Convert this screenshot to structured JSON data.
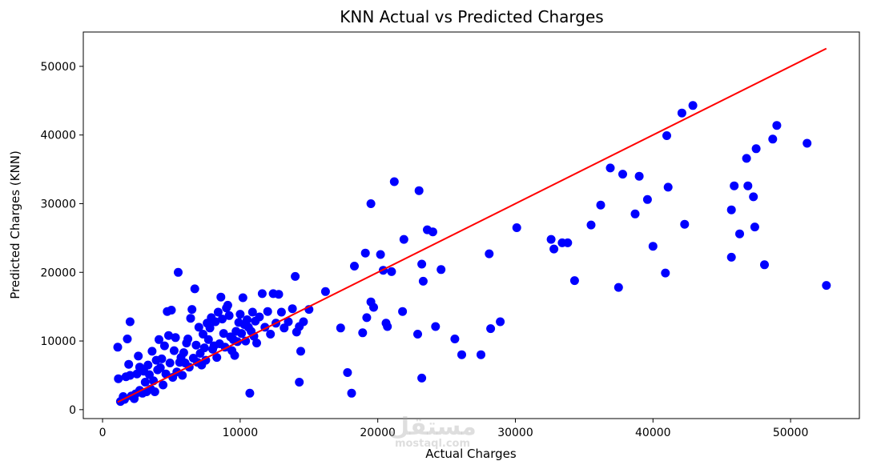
{
  "chart_data": {
    "type": "scatter",
    "title": "KNN Actual vs Predicted Charges",
    "xlabel": "Actual Charges",
    "ylabel": "Predicted Charges (KNN)",
    "xlim": [
      -1400,
      55000
    ],
    "ylim": [
      -1300,
      55000
    ],
    "xticks": [
      0,
      10000,
      20000,
      30000,
      40000,
      50000
    ],
    "yticks": [
      0,
      10000,
      20000,
      30000,
      40000,
      50000
    ],
    "grid": false,
    "point_color": "#0000ff",
    "line_color": "#ff0000",
    "reference_line": {
      "x": [
        1100,
        52600
      ],
      "y": [
        1100,
        52600
      ]
    },
    "points": [
      [
        1100,
        9100
      ],
      [
        1150,
        4500
      ],
      [
        1300,
        1200
      ],
      [
        1500,
        1900
      ],
      [
        1600,
        1500
      ],
      [
        1700,
        4800
      ],
      [
        1800,
        10300
      ],
      [
        1900,
        6600
      ],
      [
        2000,
        12800
      ],
      [
        2000,
        5000
      ],
      [
        2100,
        2000
      ],
      [
        2300,
        1600
      ],
      [
        2400,
        2300
      ],
      [
        2500,
        5200
      ],
      [
        2600,
        7800
      ],
      [
        2700,
        6200
      ],
      [
        2700,
        2800
      ],
      [
        2900,
        2400
      ],
      [
        3000,
        5600
      ],
      [
        3100,
        4000
      ],
      [
        3200,
        2600
      ],
      [
        3300,
        6500
      ],
      [
        3400,
        5100
      ],
      [
        3500,
        3000
      ],
      [
        3600,
        8500
      ],
      [
        3700,
        4200
      ],
      [
        3800,
        2600
      ],
      [
        3900,
        7200
      ],
      [
        4000,
        5800
      ],
      [
        4100,
        10200
      ],
      [
        4200,
        6100
      ],
      [
        4300,
        7400
      ],
      [
        4400,
        3600
      ],
      [
        4500,
        9300
      ],
      [
        4600,
        5200
      ],
      [
        4700,
        14300
      ],
      [
        4800,
        10800
      ],
      [
        4900,
        6800
      ],
      [
        5000,
        14500
      ],
      [
        5100,
        4700
      ],
      [
        5200,
        8600
      ],
      [
        5300,
        10500
      ],
      [
        5400,
        5500
      ],
      [
        5500,
        20000
      ],
      [
        5600,
        6900
      ],
      [
        5700,
        7600
      ],
      [
        5800,
        5000
      ],
      [
        5900,
        8300
      ],
      [
        6000,
        6800
      ],
      [
        6100,
        9700
      ],
      [
        6200,
        10300
      ],
      [
        6300,
        6200
      ],
      [
        6400,
        13300
      ],
      [
        6500,
        14600
      ],
      [
        6600,
        7500
      ],
      [
        6700,
        17600
      ],
      [
        6800,
        9400
      ],
      [
        6900,
        6900
      ],
      [
        7000,
        12000
      ],
      [
        7100,
        8200
      ],
      [
        7200,
        6500
      ],
      [
        7300,
        11000
      ],
      [
        7400,
        9000
      ],
      [
        7500,
        7200
      ],
      [
        7600,
        12600
      ],
      [
        7700,
        10200
      ],
      [
        7800,
        11900
      ],
      [
        7900,
        13400
      ],
      [
        8000,
        8800
      ],
      [
        8100,
        9300
      ],
      [
        8200,
        12800
      ],
      [
        8300,
        7600
      ],
      [
        8400,
        14200
      ],
      [
        8500,
        9600
      ],
      [
        8600,
        16400
      ],
      [
        8700,
        13200
      ],
      [
        8800,
        11100
      ],
      [
        8900,
        9100
      ],
      [
        9000,
        14800
      ],
      [
        9100,
        15200
      ],
      [
        9200,
        13700
      ],
      [
        9300,
        10600
      ],
      [
        9400,
        8600
      ],
      [
        9500,
        10200
      ],
      [
        9600,
        7900
      ],
      [
        9700,
        11400
      ],
      [
        9800,
        9900
      ],
      [
        9900,
        12700
      ],
      [
        10000,
        13900
      ],
      [
        10100,
        11100
      ],
      [
        10200,
        16300
      ],
      [
        10300,
        12400
      ],
      [
        10400,
        10000
      ],
      [
        10500,
        13100
      ],
      [
        10600,
        12000
      ],
      [
        10700,
        2400
      ],
      [
        10800,
        11400
      ],
      [
        10900,
        14200
      ],
      [
        11000,
        10700
      ],
      [
        11100,
        12900
      ],
      [
        11200,
        9700
      ],
      [
        11400,
        13500
      ],
      [
        11600,
        16900
      ],
      [
        11800,
        12000
      ],
      [
        12000,
        14300
      ],
      [
        12200,
        11000
      ],
      [
        12400,
        16900
      ],
      [
        12600,
        12600
      ],
      [
        12800,
        16800
      ],
      [
        13000,
        14200
      ],
      [
        13200,
        11900
      ],
      [
        13500,
        12800
      ],
      [
        13800,
        14700
      ],
      [
        14000,
        19400
      ],
      [
        14100,
        11300
      ],
      [
        14300,
        12100
      ],
      [
        14400,
        8500
      ],
      [
        14300,
        4000
      ],
      [
        14600,
        12800
      ],
      [
        15000,
        14600
      ],
      [
        16200,
        17200
      ],
      [
        17300,
        11900
      ],
      [
        17800,
        5400
      ],
      [
        18100,
        2400
      ],
      [
        18300,
        20900
      ],
      [
        18900,
        11200
      ],
      [
        19100,
        22800
      ],
      [
        19200,
        13400
      ],
      [
        19500,
        15700
      ],
      [
        19500,
        30000
      ],
      [
        19700,
        14900
      ],
      [
        20200,
        22600
      ],
      [
        20400,
        20300
      ],
      [
        20600,
        12600
      ],
      [
        20700,
        12100
      ],
      [
        21000,
        20100
      ],
      [
        21200,
        33200
      ],
      [
        21800,
        14300
      ],
      [
        21900,
        24800
      ],
      [
        22900,
        11000
      ],
      [
        23000,
        31900
      ],
      [
        23200,
        21200
      ],
      [
        23200,
        4600
      ],
      [
        23300,
        18700
      ],
      [
        23600,
        26200
      ],
      [
        24000,
        25900
      ],
      [
        24200,
        12100
      ],
      [
        24600,
        20400
      ],
      [
        25600,
        10300
      ],
      [
        26100,
        8000
      ],
      [
        27500,
        8000
      ],
      [
        28100,
        22700
      ],
      [
        28200,
        11800
      ],
      [
        28900,
        12800
      ],
      [
        30100,
        26500
      ],
      [
        32600,
        24800
      ],
      [
        32800,
        23400
      ],
      [
        33400,
        24300
      ],
      [
        33800,
        24300
      ],
      [
        34300,
        18800
      ],
      [
        35500,
        26900
      ],
      [
        36200,
        29800
      ],
      [
        36900,
        35200
      ],
      [
        37500,
        17800
      ],
      [
        37800,
        34300
      ],
      [
        38700,
        28500
      ],
      [
        39000,
        34000
      ],
      [
        39600,
        30600
      ],
      [
        40000,
        23800
      ],
      [
        40900,
        19900
      ],
      [
        41000,
        39900
      ],
      [
        41100,
        32400
      ],
      [
        42100,
        43200
      ],
      [
        42300,
        27000
      ],
      [
        42900,
        44300
      ],
      [
        45700,
        29100
      ],
      [
        45700,
        22200
      ],
      [
        45900,
        32600
      ],
      [
        46300,
        25600
      ],
      [
        46800,
        36600
      ],
      [
        46900,
        32600
      ],
      [
        47300,
        31000
      ],
      [
        47400,
        26600
      ],
      [
        47500,
        38000
      ],
      [
        48100,
        21100
      ],
      [
        48700,
        39400
      ],
      [
        49000,
        41400
      ],
      [
        51200,
        38800
      ],
      [
        52600,
        18100
      ]
    ]
  },
  "watermark": {
    "text": "مستقل",
    "subtext": "mostaql.com"
  }
}
